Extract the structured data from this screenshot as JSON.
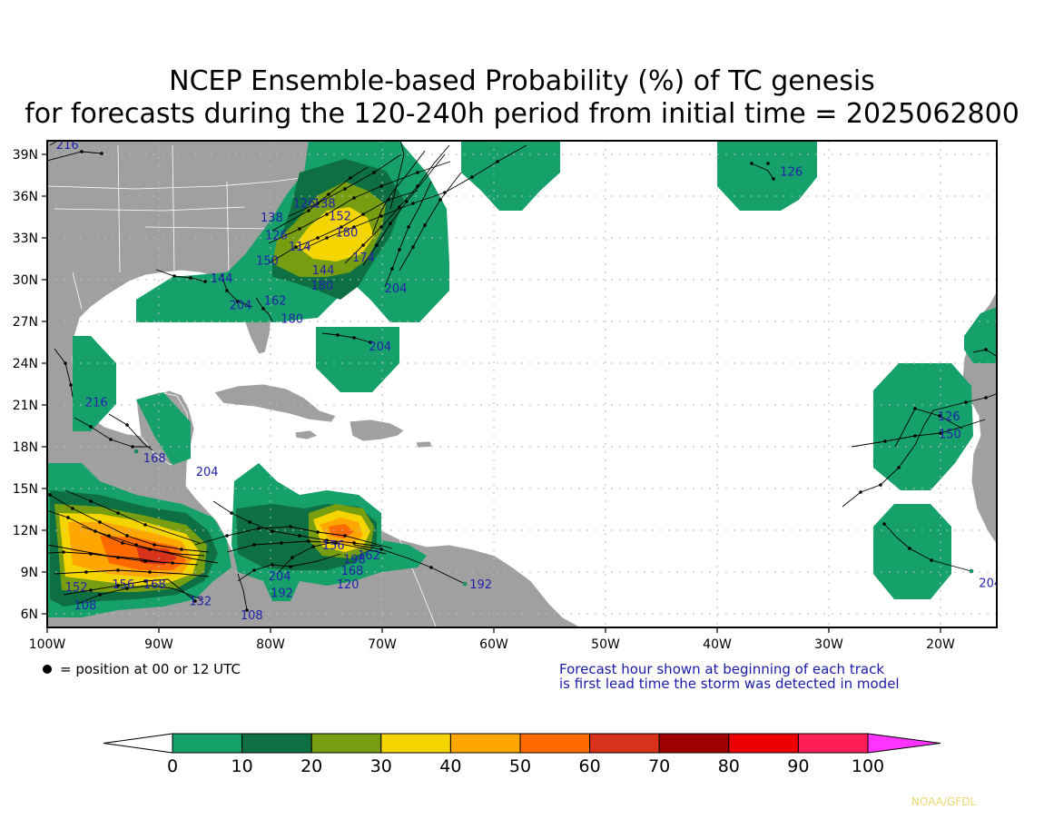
{
  "title_line1": "NCEP Ensemble-based Probability (%) of TC genesis",
  "title_line2": "for forecasts during the 120-240h period from initial time = 2025062800",
  "lat_labels": [
    "39N",
    "36N",
    "33N",
    "30N",
    "27N",
    "24N",
    "21N",
    "18N",
    "15N",
    "12N",
    "9N",
    "6N"
  ],
  "lon_labels": [
    "100W",
    "90W",
    "80W",
    "70W",
    "60W",
    "50W",
    "40W",
    "30W",
    "20W"
  ],
  "legend_dot_text": "= position at 00 or 12 UTC",
  "note_line1": "Forecast hour shown at beginning of each track",
  "note_line2": "is first lead time the storm was detected in model",
  "colorbar": {
    "ticks": [
      "0",
      "10",
      "20",
      "30",
      "40",
      "50",
      "60",
      "70",
      "80",
      "90",
      "100"
    ],
    "colors": [
      "#ffffff",
      "#16a06a",
      "#0e6f43",
      "#779e10",
      "#f5d500",
      "#ffa600",
      "#ff6a00",
      "#d8321a",
      "#9e0000",
      "#ee0000",
      "#ff1e55",
      "#ff33ff"
    ]
  },
  "land_color": "#a0a0a0",
  "track_color": "#000000",
  "label_color": "#2222aa",
  "credit": "NOAA/GFDL",
  "map_extent": {
    "lon_min": -100,
    "lon_max": -15,
    "lat_min": 5,
    "lat_max": 40
  },
  "track_labels": [
    {
      "text": "216",
      "lon": -99.2,
      "lat": 39.4
    },
    {
      "text": "126",
      "lon": -34.4,
      "lat": 37.5
    },
    {
      "text": "138",
      "lon": -80.9,
      "lat": 34.2
    },
    {
      "text": "126",
      "lon": -78.0,
      "lat": 35.2
    },
    {
      "text": "138",
      "lon": -76.2,
      "lat": 35.2
    },
    {
      "text": "126",
      "lon": -80.5,
      "lat": 32.9
    },
    {
      "text": "152",
      "lon": -74.8,
      "lat": 34.3
    },
    {
      "text": "180",
      "lon": -74.2,
      "lat": 33.1
    },
    {
      "text": "150",
      "lon": -81.3,
      "lat": 31.1
    },
    {
      "text": "114",
      "lon": -78.4,
      "lat": 32.1
    },
    {
      "text": "144",
      "lon": -76.3,
      "lat": 30.4
    },
    {
      "text": "180",
      "lon": -76.4,
      "lat": 29.3
    },
    {
      "text": "174",
      "lon": -72.7,
      "lat": 31.3
    },
    {
      "text": "204",
      "lon": -69.8,
      "lat": 29.1
    },
    {
      "text": "144",
      "lon": -85.4,
      "lat": 29.8
    },
    {
      "text": "204",
      "lon": -83.7,
      "lat": 27.9
    },
    {
      "text": "162",
      "lon": -80.6,
      "lat": 28.2
    },
    {
      "text": "180",
      "lon": -79.1,
      "lat": 26.9
    },
    {
      "text": "204",
      "lon": -71.2,
      "lat": 24.9
    },
    {
      "text": "216",
      "lon": -96.6,
      "lat": 20.9
    },
    {
      "text": "168",
      "lon": -91.4,
      "lat": 16.9
    },
    {
      "text": "204",
      "lon": -86.7,
      "lat": 15.9
    },
    {
      "text": "126",
      "lon": -20.3,
      "lat": 19.9
    },
    {
      "text": "150",
      "lon": -20.2,
      "lat": 18.6
    },
    {
      "text": "204",
      "lon": -16.6,
      "lat": 7.9
    },
    {
      "text": "192",
      "lon": -62.2,
      "lat": 7.8
    },
    {
      "text": "168",
      "lon": -73.7,
      "lat": 8.8
    },
    {
      "text": "120",
      "lon": -74.1,
      "lat": 7.8
    },
    {
      "text": "192",
      "lon": -80.0,
      "lat": 7.2
    },
    {
      "text": "204",
      "lon": -80.2,
      "lat": 8.4
    },
    {
      "text": "108",
      "lon": -82.7,
      "lat": 5.6
    },
    {
      "text": "132",
      "lon": -87.3,
      "lat": 6.6
    },
    {
      "text": "108",
      "lon": -97.6,
      "lat": 6.3
    },
    {
      "text": "152",
      "lon": -98.4,
      "lat": 7.6
    },
    {
      "text": "156",
      "lon": -94.2,
      "lat": 7.8
    },
    {
      "text": "162",
      "lon": -72.2,
      "lat": 9.9
    },
    {
      "text": "156",
      "lon": -75.4,
      "lat": 10.6
    },
    {
      "text": "198",
      "lon": -73.5,
      "lat": 9.6
    },
    {
      "text": "168",
      "lon": -91.4,
      "lat": 7.8
    }
  ]
}
